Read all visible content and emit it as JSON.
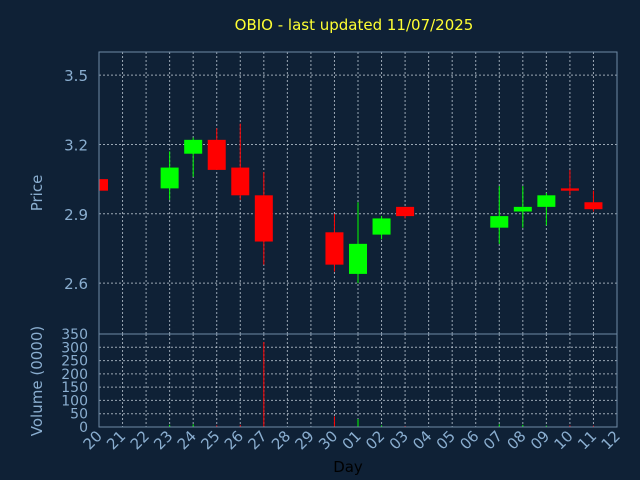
{
  "chart_data": {
    "type": "candlestick",
    "title": "OBIO - last updated 11/07/2025",
    "xlabel": "Day",
    "ylabel": "Price",
    "volume_label": "Volume (0000)",
    "x_ticks": [
      "20",
      "21",
      "22",
      "23",
      "24",
      "25",
      "26",
      "27",
      "28",
      "29",
      "30",
      "01",
      "02",
      "03",
      "04",
      "05",
      "06",
      "07",
      "08",
      "09",
      "10",
      "11",
      "12"
    ],
    "price_ticks": [
      "3.5",
      "3.2",
      "2.9",
      "2.6"
    ],
    "price_tick_values": [
      3.5,
      3.2,
      2.9,
      2.6
    ],
    "ylim": [
      2.38,
      3.6
    ],
    "volume_ticks": [
      "350",
      "300",
      "250",
      "200",
      "150",
      "100",
      "50",
      "0"
    ],
    "volume_tick_values": [
      350,
      300,
      250,
      200,
      150,
      100,
      50,
      0
    ],
    "volume_ylim": [
      0,
      350
    ],
    "grid": true,
    "colors": {
      "up": "#00ff00",
      "down": "#ff0000",
      "background": "#0f2136",
      "title": "#ffff33",
      "axis_text": "#8aaed0"
    },
    "candles": [
      {
        "x": "20",
        "open": 3.05,
        "high": 3.05,
        "low": 3.0,
        "close": 3.0,
        "volume": 2
      },
      {
        "x": "23",
        "open": 3.01,
        "high": 3.17,
        "low": 2.96,
        "close": 3.1,
        "volume": 8
      },
      {
        "x": "24",
        "open": 3.16,
        "high": 3.23,
        "low": 3.06,
        "close": 3.22,
        "volume": 10
      },
      {
        "x": "25",
        "open": 3.22,
        "high": 3.27,
        "low": 3.09,
        "close": 3.09,
        "volume": 6
      },
      {
        "x": "26",
        "open": 3.1,
        "high": 3.29,
        "low": 2.96,
        "close": 2.98,
        "volume": 8
      },
      {
        "x": "27",
        "open": 2.98,
        "high": 3.08,
        "low": 2.68,
        "close": 2.78,
        "volume": 320
      },
      {
        "x": "30",
        "open": 2.82,
        "high": 2.9,
        "low": 2.65,
        "close": 2.68,
        "volume": 40
      },
      {
        "x": "01",
        "open": 2.64,
        "high": 2.95,
        "low": 2.6,
        "close": 2.77,
        "volume": 30
      },
      {
        "x": "02",
        "open": 2.81,
        "high": 2.89,
        "low": 2.79,
        "close": 2.88,
        "volume": 6
      },
      {
        "x": "03",
        "open": 2.93,
        "high": 2.93,
        "low": 2.88,
        "close": 2.89,
        "volume": 4
      },
      {
        "x": "07",
        "open": 2.84,
        "high": 3.02,
        "low": 2.77,
        "close": 2.89,
        "volume": 10
      },
      {
        "x": "08",
        "open": 2.91,
        "high": 3.02,
        "low": 2.84,
        "close": 2.93,
        "volume": 8
      },
      {
        "x": "09",
        "open": 2.93,
        "high": 2.99,
        "low": 2.85,
        "close": 2.98,
        "volume": 5
      },
      {
        "x": "10",
        "open": 3.01,
        "high": 3.09,
        "low": 2.98,
        "close": 3.0,
        "volume": 6
      },
      {
        "x": "11",
        "open": 2.95,
        "high": 3.0,
        "low": 2.91,
        "close": 2.92,
        "volume": 5
      }
    ]
  }
}
